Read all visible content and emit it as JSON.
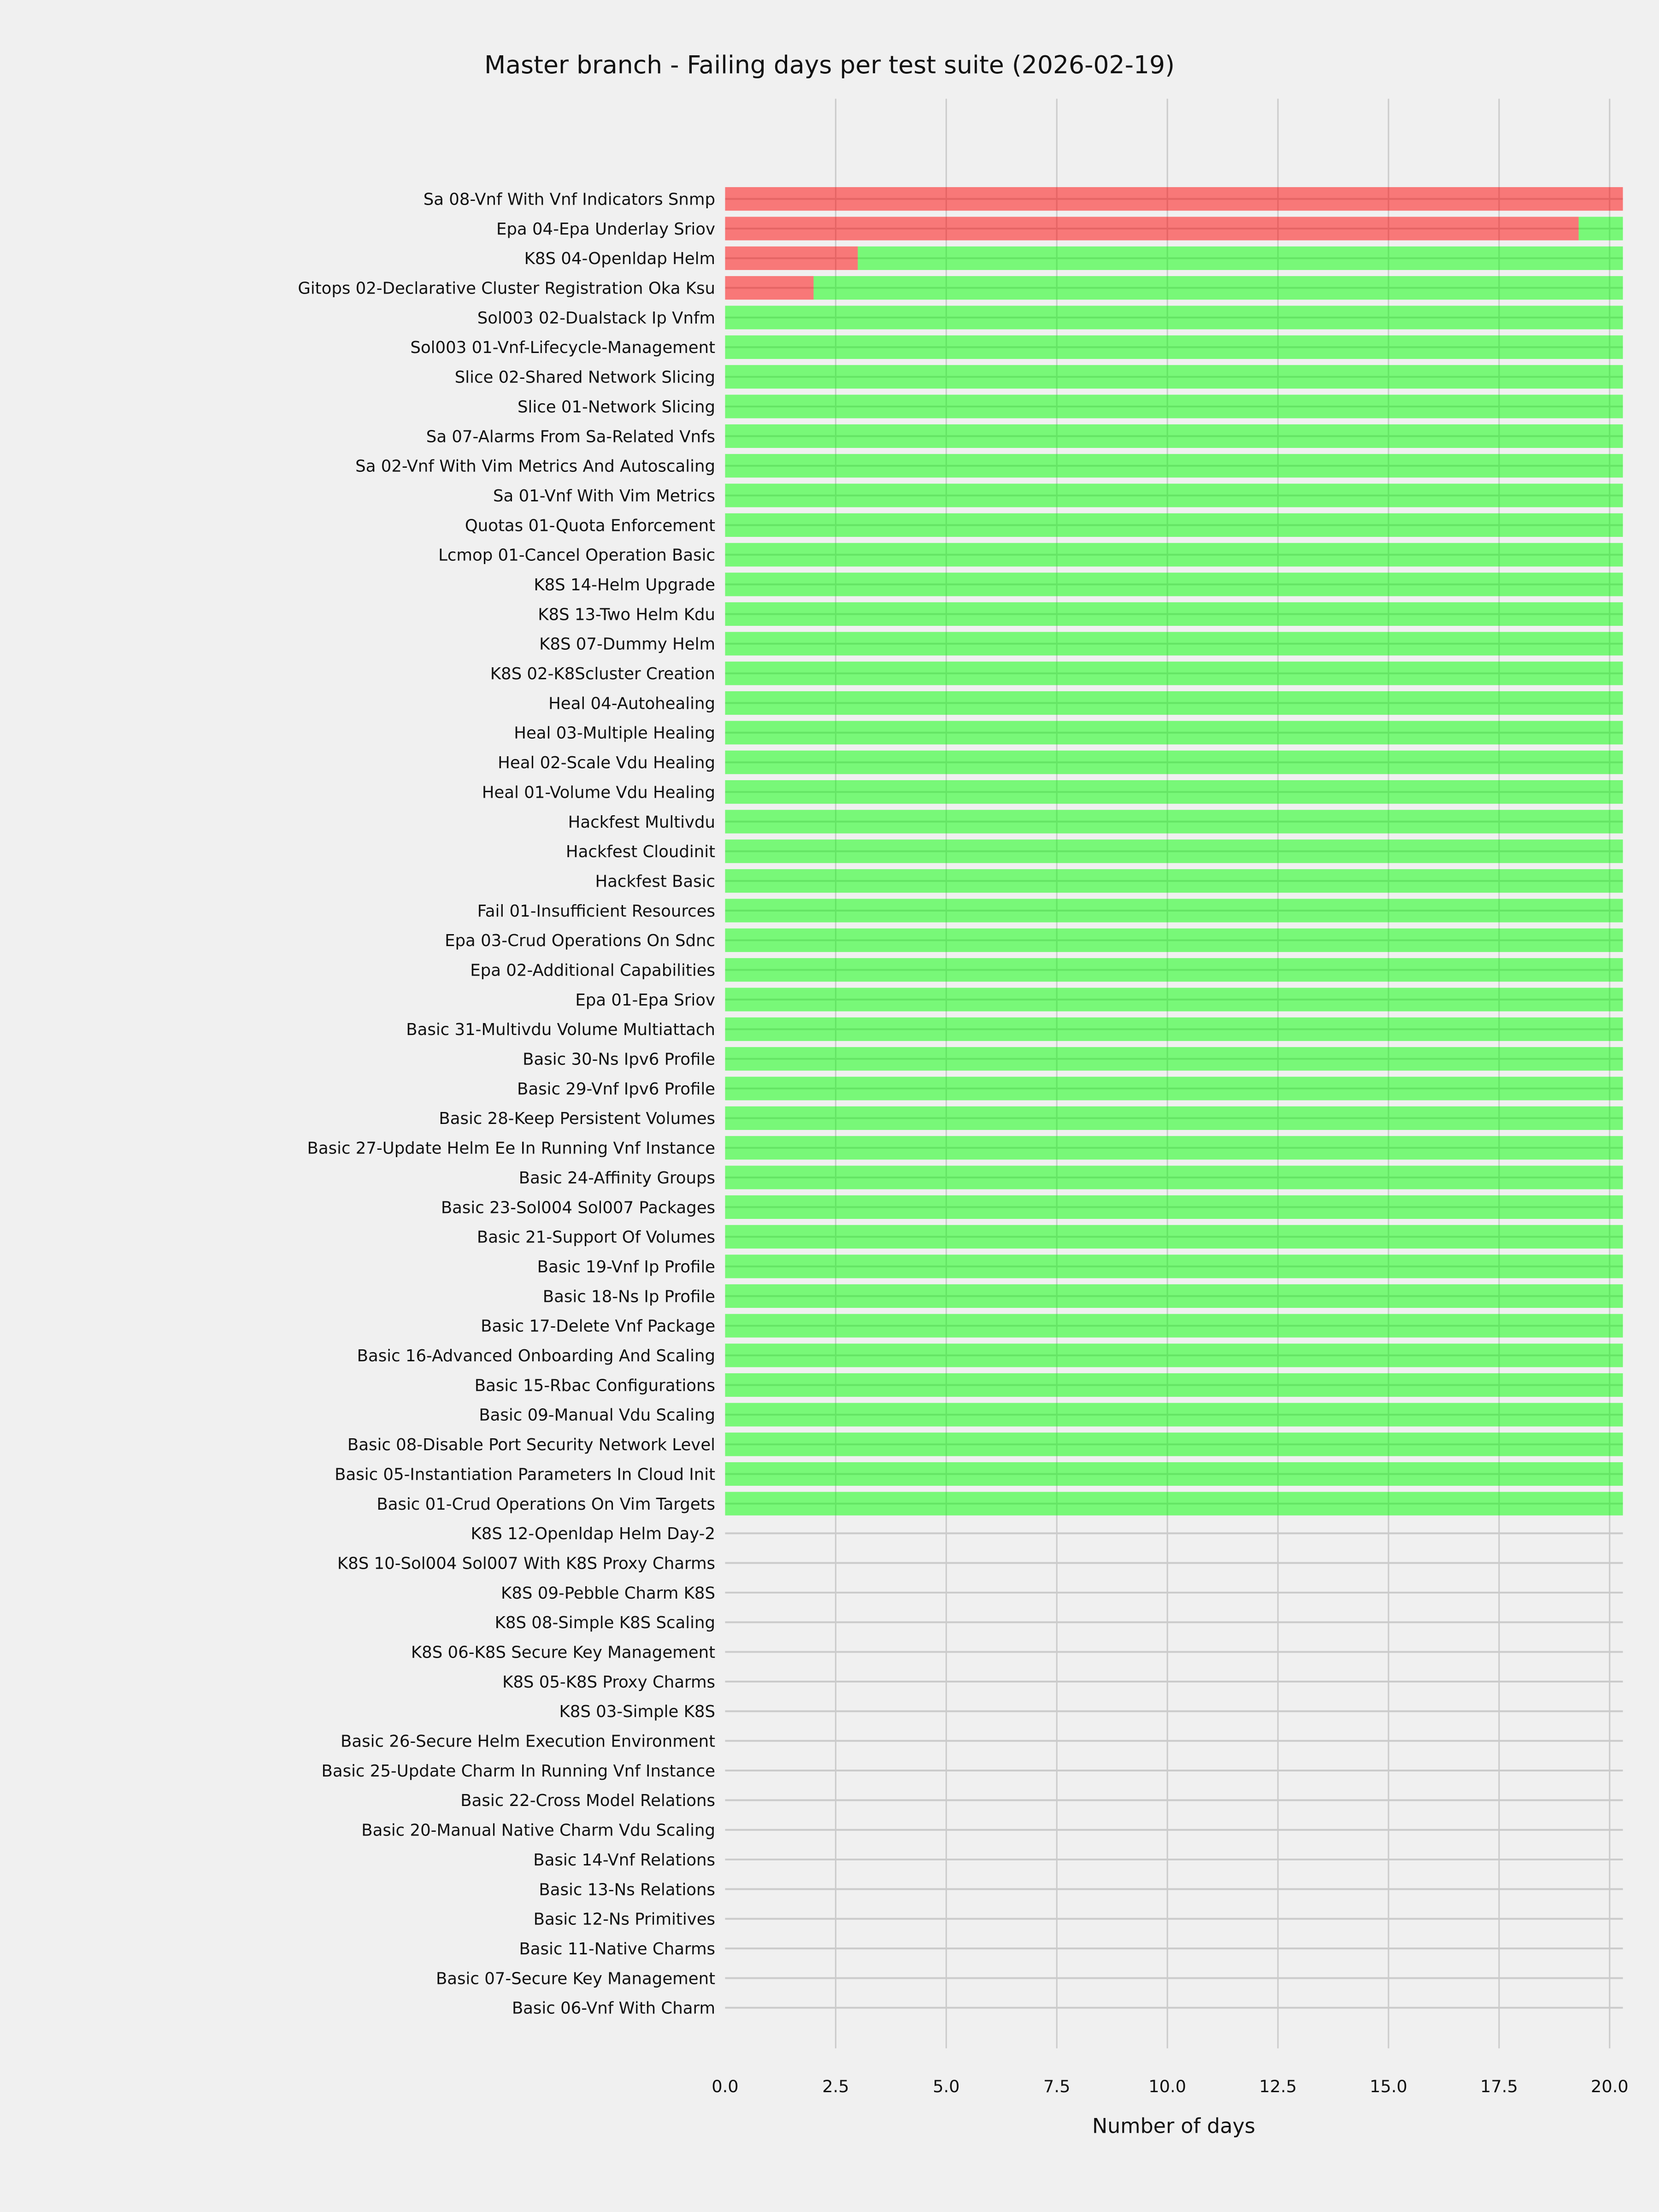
{
  "chart_data": {
    "type": "bar",
    "orientation": "horizontal",
    "stacked": true,
    "title": "Master branch - Failing days per test suite (2026-02-19)",
    "xlabel": "Number of days",
    "ylabel": "",
    "xlim": [
      0,
      20.3
    ],
    "xticks": [
      "0.0",
      "2.5",
      "5.0",
      "7.5",
      "10.0",
      "12.5",
      "15.0",
      "17.5",
      "20.0"
    ],
    "grid": true,
    "colors": {
      "failing": "#f87878",
      "passing": "#78f878",
      "background": "#f0f0f0",
      "grid": "#cbcbcb"
    },
    "categories": [
      "Sa 08-Vnf With Vnf Indicators Snmp",
      "Epa 04-Epa Underlay Sriov",
      "K8S 04-Openldap Helm",
      "Gitops 02-Declarative Cluster Registration Oka Ksu",
      "Sol003 02-Dualstack Ip Vnfm",
      "Sol003 01-Vnf-Lifecycle-Management",
      "Slice 02-Shared Network Slicing",
      "Slice 01-Network Slicing",
      "Sa 07-Alarms From Sa-Related Vnfs",
      "Sa 02-Vnf With Vim Metrics And Autoscaling",
      "Sa 01-Vnf With Vim Metrics",
      "Quotas 01-Quota Enforcement",
      "Lcmop 01-Cancel Operation Basic",
      "K8S 14-Helm Upgrade",
      "K8S 13-Two Helm Kdu",
      "K8S 07-Dummy Helm",
      "K8S 02-K8Scluster Creation",
      "Heal 04-Autohealing",
      "Heal 03-Multiple Healing",
      "Heal 02-Scale Vdu Healing",
      "Heal 01-Volume Vdu Healing",
      "Hackfest Multivdu",
      "Hackfest Cloudinit",
      "Hackfest Basic",
      "Fail 01-Insufficient Resources",
      "Epa 03-Crud Operations On Sdnc",
      "Epa 02-Additional Capabilities",
      "Epa 01-Epa Sriov",
      "Basic 31-Multivdu Volume Multiattach",
      "Basic 30-Ns Ipv6 Profile",
      "Basic 29-Vnf Ipv6 Profile",
      "Basic 28-Keep Persistent Volumes",
      "Basic 27-Update Helm Ee In Running Vnf Instance",
      "Basic 24-Affinity Groups",
      "Basic 23-Sol004 Sol007 Packages",
      "Basic 21-Support Of Volumes",
      "Basic 19-Vnf Ip Profile",
      "Basic 18-Ns Ip Profile",
      "Basic 17-Delete Vnf Package",
      "Basic 16-Advanced Onboarding And Scaling",
      "Basic 15-Rbac Configurations",
      "Basic 09-Manual Vdu Scaling",
      "Basic 08-Disable Port Security Network Level",
      "Basic 05-Instantiation Parameters In Cloud Init",
      "Basic 01-Crud Operations On Vim Targets",
      "K8S 12-Openldap Helm Day-2",
      "K8S 10-Sol004 Sol007 With K8S Proxy Charms",
      "K8S 09-Pebble Charm K8S",
      "K8S 08-Simple K8S Scaling",
      "K8S 06-K8S Secure Key Management",
      "K8S 05-K8S Proxy Charms",
      "K8S 03-Simple K8S",
      "Basic 26-Secure Helm Execution Environment",
      "Basic 25-Update Charm In Running Vnf Instance",
      "Basic 22-Cross Model Relations",
      "Basic 20-Manual Native Charm Vdu Scaling",
      "Basic 14-Vnf Relations",
      "Basic 13-Ns Relations",
      "Basic 12-Ns Primitives",
      "Basic 11-Native Charms",
      "Basic 07-Secure Key Management",
      "Basic 06-Vnf With Charm"
    ],
    "series": [
      {
        "key": "failing",
        "values": [
          20.3,
          19.3,
          3,
          2,
          0,
          0,
          0,
          0,
          0,
          0,
          0,
          0,
          0,
          0,
          0,
          0,
          0,
          0,
          0,
          0,
          0,
          0,
          0,
          0,
          0,
          0,
          0,
          0,
          0,
          0,
          0,
          0,
          0,
          0,
          0,
          0,
          0,
          0,
          0,
          0,
          0,
          0,
          0,
          0,
          0,
          0,
          0,
          0,
          0,
          0,
          0,
          0,
          0,
          0,
          0,
          0,
          0,
          0,
          0,
          0,
          0,
          0
        ]
      },
      {
        "key": "passing",
        "values": [
          0,
          1,
          17.3,
          18.3,
          20.3,
          20.3,
          20.3,
          20.3,
          20.3,
          20.3,
          20.3,
          20.3,
          20.3,
          20.3,
          20.3,
          20.3,
          20.3,
          20.3,
          20.3,
          20.3,
          20.3,
          20.3,
          20.3,
          20.3,
          20.3,
          20.3,
          20.3,
          20.3,
          20.3,
          20.3,
          20.3,
          20.3,
          20.3,
          20.3,
          20.3,
          20.3,
          20.3,
          20.3,
          20.3,
          20.3,
          20.3,
          20.3,
          20.3,
          20.3,
          20.3,
          0,
          0,
          0,
          0,
          0,
          0,
          0,
          0,
          0,
          0,
          0,
          0,
          0,
          0,
          0,
          0,
          0
        ]
      }
    ]
  }
}
